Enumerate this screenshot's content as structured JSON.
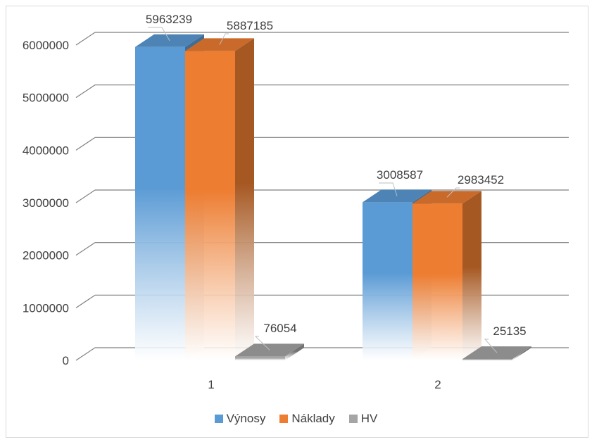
{
  "chart_data": {
    "type": "bar",
    "style": "3d-clustered-column",
    "categories": [
      "1",
      "2"
    ],
    "series": [
      {
        "name": "Výnosy",
        "values": [
          5963239,
          3008587
        ],
        "color": "#5b9bd5"
      },
      {
        "name": "Náklady",
        "values": [
          5887185,
          2983452
        ],
        "color": "#ed7d31"
      },
      {
        "name": "HV",
        "values": [
          76054,
          25135
        ],
        "color": "#a5a5a5"
      }
    ],
    "ylim": [
      0,
      6000000
    ],
    "yticks": [
      "0",
      "1000000",
      "2000000",
      "3000000",
      "4000000",
      "5000000",
      "6000000"
    ],
    "data_labels": [
      [
        "5963239",
        "3008587"
      ],
      [
        "5887185",
        "2983452"
      ],
      [
        "76054",
        "25135"
      ]
    ],
    "grid": true,
    "legend_position": "bottom"
  }
}
